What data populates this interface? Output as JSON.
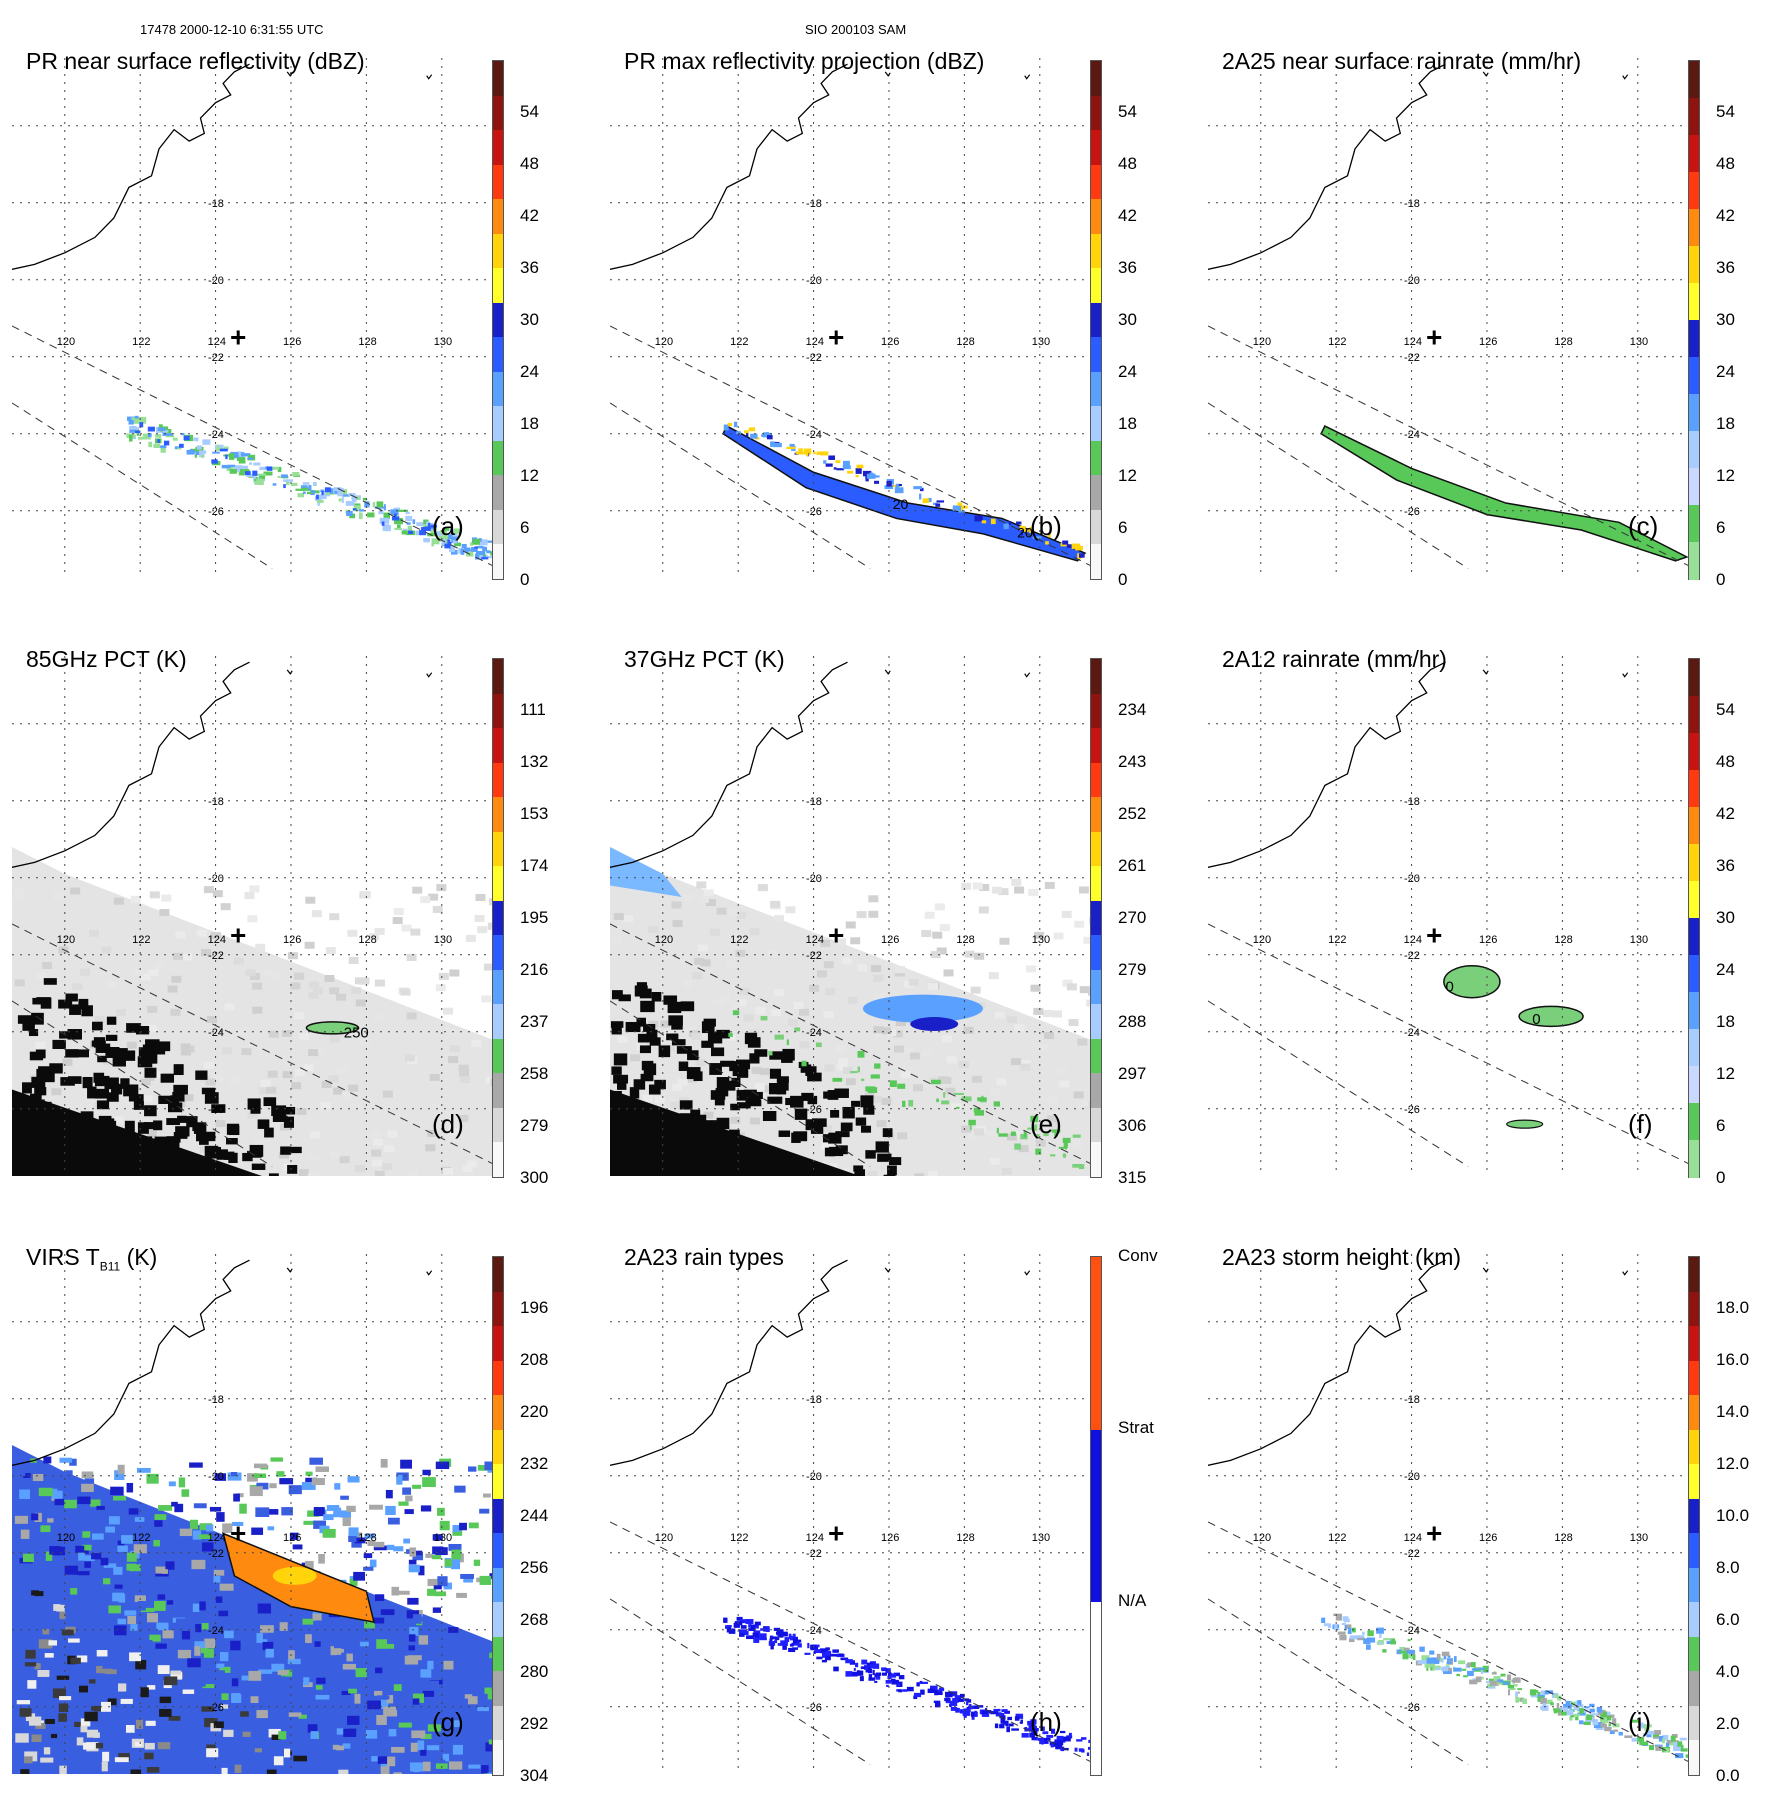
{
  "header": {
    "left": "17478 2000-12-10 6:31:55 UTC",
    "center": "SIO 200103 SAM"
  },
  "axes": {
    "lon_labels": [
      "120",
      "122",
      "124",
      "126",
      "128",
      "130"
    ],
    "lat_labels": [
      "-18",
      "-20",
      "-22",
      "-24",
      "-26"
    ]
  },
  "panels": [
    {
      "id": "a",
      "title": "PR near surface reflectivity (dBZ)",
      "letter": "(a)",
      "colorbar": {
        "labels": [
          "54",
          "48",
          "42",
          "36",
          "30",
          "24",
          "18",
          "12",
          "6",
          "0"
        ],
        "colors": [
          "#5a1a12",
          "#8e1410",
          "#c81410",
          "#ff3a10",
          "#ff8a10",
          "#ffd40a",
          "#ffff2a",
          "#1a20c8",
          "#2a5cff",
          "#5aa0ff",
          "#a8ccff",
          "#58c858",
          "#a8a8a8",
          "#d8d8d8",
          "#f8f8f8"
        ]
      },
      "features": "pr"
    },
    {
      "id": "b",
      "title": "PR max reflectivity projection (dBZ)",
      "letter": "(b)",
      "colorbar": {
        "labels": [
          "54",
          "48",
          "42",
          "36",
          "30",
          "24",
          "18",
          "12",
          "6",
          "0"
        ],
        "colors": [
          "#5a1a12",
          "#8e1410",
          "#c81410",
          "#ff3a10",
          "#ff8a10",
          "#ffd40a",
          "#ffff2a",
          "#1a20c8",
          "#2a5cff",
          "#5aa0ff",
          "#a8ccff",
          "#58c858",
          "#a8a8a8",
          "#d8d8d8",
          "#f8f8f8"
        ]
      },
      "features": "prmax",
      "contour_labels": [
        "20",
        "20"
      ]
    },
    {
      "id": "c",
      "title": "2A25 near surface rainrate (mm/hr)",
      "letter": "(c)",
      "colorbar": {
        "labels": [
          "54",
          "48",
          "42",
          "36",
          "30",
          "24",
          "18",
          "12",
          "6",
          "0"
        ],
        "colors": [
          "#5a1a12",
          "#8e1410",
          "#c81410",
          "#ff3a10",
          "#ff8a10",
          "#ffd40a",
          "#ffff2a",
          "#1a20c8",
          "#2a5cff",
          "#5aa0ff",
          "#a8ccff",
          "#c8d8ff",
          "#58c858",
          "#98e098"
        ]
      },
      "features": "rain"
    },
    {
      "id": "d",
      "title": "85GHz PCT (K)",
      "letter": "(d)",
      "colorbar": {
        "labels": [
          "111",
          "132",
          "153",
          "174",
          "195",
          "216",
          "237",
          "258",
          "279",
          "300"
        ],
        "colors": [
          "#5a1a12",
          "#8e1410",
          "#c81410",
          "#ff3a10",
          "#ff8a10",
          "#ffd40a",
          "#ffff2a",
          "#1a20c8",
          "#2a5cff",
          "#5aa0ff",
          "#a8ccff",
          "#58c858",
          "#a8a8a8",
          "#d8d8d8",
          "#f8f8f8"
        ]
      },
      "features": "pct85",
      "contour_labels": [
        "250"
      ]
    },
    {
      "id": "e",
      "title": "37GHz PCT (K)",
      "letter": "(e)",
      "colorbar": {
        "labels": [
          "234",
          "243",
          "252",
          "261",
          "270",
          "279",
          "288",
          "297",
          "306",
          "315"
        ],
        "colors": [
          "#5a1a12",
          "#8e1410",
          "#c81410",
          "#ff3a10",
          "#ff8a10",
          "#ffd40a",
          "#ffff2a",
          "#1a20c8",
          "#2a5cff",
          "#5aa0ff",
          "#a8ccff",
          "#58c858",
          "#a8a8a8",
          "#d8d8d8",
          "#f8f8f8"
        ]
      },
      "features": "pct37"
    },
    {
      "id": "f",
      "title": "2A12 rainrate (mm/hr)",
      "letter": "(f)",
      "colorbar": {
        "labels": [
          "54",
          "48",
          "42",
          "36",
          "30",
          "24",
          "18",
          "12",
          "6",
          "0"
        ],
        "colors": [
          "#5a1a12",
          "#8e1410",
          "#c81410",
          "#ff3a10",
          "#ff8a10",
          "#ffd40a",
          "#ffff2a",
          "#1a20c8",
          "#2a5cff",
          "#5aa0ff",
          "#a8ccff",
          "#c8d8ff",
          "#58c858",
          "#98e098"
        ]
      },
      "features": "tmi",
      "contour_labels": [
        "0",
        "0"
      ]
    },
    {
      "id": "g",
      "title": "VIRS T",
      "title_sub": "B11",
      "title_suffix": " (K)",
      "letter": "(g)",
      "colorbar": {
        "labels": [
          "196",
          "208",
          "220",
          "232",
          "244",
          "256",
          "268",
          "280",
          "292",
          "304"
        ],
        "colors": [
          "#5a1a12",
          "#8e1410",
          "#c81410",
          "#ff3a10",
          "#ff8a10",
          "#ffd40a",
          "#ffff2a",
          "#1a20c8",
          "#2a5cff",
          "#5aa0ff",
          "#a8ccff",
          "#58c858",
          "#a8a8a8",
          "#d8d8d8",
          "#f8f8f8"
        ]
      },
      "features": "virs"
    },
    {
      "id": "h",
      "title": "2A23 rain types",
      "letter": "(h)",
      "colorbar": {
        "labels": [
          "Conv",
          "Strat",
          "N/A"
        ],
        "colors": [
          "#ff5010",
          "#1010e0",
          "#ffffff"
        ]
      },
      "features": "types"
    },
    {
      "id": "i",
      "title": "2A23 storm height (km)",
      "letter": "(i)",
      "colorbar": {
        "labels": [
          "18.0",
          "16.0",
          "14.0",
          "12.0",
          "10.0",
          "8.0",
          "6.0",
          "4.0",
          "2.0",
          "0.0"
        ],
        "colors": [
          "#5a1a12",
          "#8e1410",
          "#c81410",
          "#ff3a10",
          "#ff8a10",
          "#ffd40a",
          "#ffff2a",
          "#1a20c8",
          "#2a5cff",
          "#5aa0ff",
          "#a8ccff",
          "#58c858",
          "#a8a8a8",
          "#d8d8d8",
          "#f8f8f8"
        ]
      },
      "features": "height"
    }
  ]
}
